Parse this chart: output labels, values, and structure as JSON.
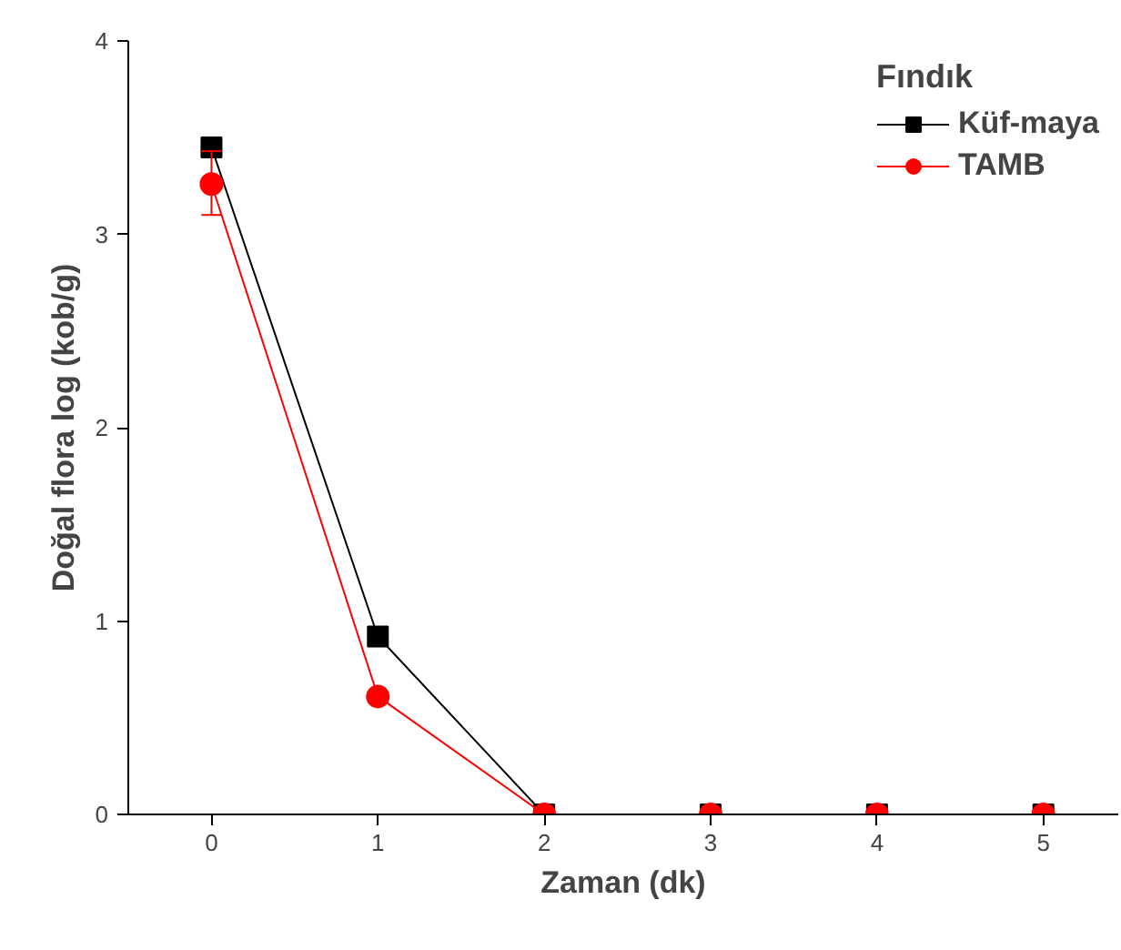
{
  "chart_data": {
    "type": "line",
    "xlabel": "Zaman (dk)",
    "ylabel": "Doğal flora log (kob/g)",
    "legend_title": "Fındık",
    "x": [
      0,
      1,
      2,
      3,
      4,
      5
    ],
    "series": [
      {
        "name": "Küf-maya",
        "color": "#000000",
        "marker": "square",
        "values": [
          3.45,
          0.92,
          0,
          0,
          0,
          0
        ]
      },
      {
        "name": "TAMB",
        "color": "#ff0000",
        "marker": "circle",
        "values": [
          3.26,
          0.61,
          0,
          0,
          0,
          0
        ],
        "errors": [
          [
            3.1,
            3.43
          ],
          null,
          null,
          null,
          null,
          null
        ]
      }
    ],
    "xlim": [
      -0.5,
      5.45
    ],
    "ylim": [
      0,
      4
    ],
    "xticks": [
      0,
      1,
      2,
      3,
      4,
      5
    ],
    "yticks": [
      0,
      1,
      2,
      3,
      4
    ],
    "grid": false,
    "legend": "top right",
    "line_style": "solid"
  }
}
